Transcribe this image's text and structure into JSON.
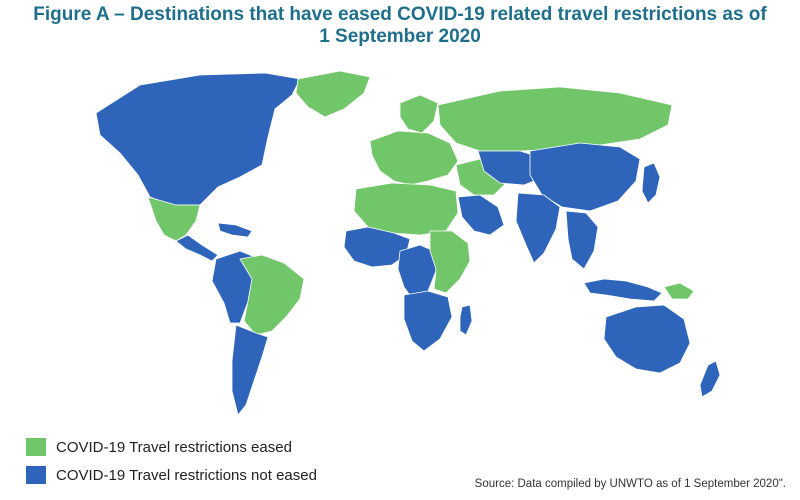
{
  "title_line1": "Figure A – Destinations that have eased COVID-19 related travel restrictions as of",
  "title_line2": "1 September 2020",
  "colors": {
    "title": "#1f6f8c",
    "eased": "#72c66a",
    "not_eased": "#2e65bb"
  },
  "legend": [
    {
      "label": "COVID-19 Travel restrictions eased",
      "color": "#72c66a"
    },
    {
      "label": "COVID-19 Travel restrictions not eased",
      "color": "#2e65bb"
    }
  ],
  "source": "Source: Data compiled by UNWTO as of 1 September 2020\".",
  "map_regions": [
    {
      "name": "north-america",
      "status": "not_eased"
    },
    {
      "name": "greenland",
      "status": "eased"
    },
    {
      "name": "mexico",
      "status": "eased"
    },
    {
      "name": "central-america",
      "status": "not_eased"
    },
    {
      "name": "caribbean",
      "status": "not_eased"
    },
    {
      "name": "brazil",
      "status": "eased"
    },
    {
      "name": "western-south-america",
      "status": "not_eased"
    },
    {
      "name": "southern-cone",
      "status": "not_eased"
    },
    {
      "name": "europe",
      "status": "eased"
    },
    {
      "name": "scandinavia",
      "status": "eased"
    },
    {
      "name": "russia",
      "status": "eased"
    },
    {
      "name": "north-africa",
      "status": "eased"
    },
    {
      "name": "west-africa",
      "status": "not_eased"
    },
    {
      "name": "central-africa",
      "status": "not_eased"
    },
    {
      "name": "east-africa",
      "status": "eased"
    },
    {
      "name": "southern-africa",
      "status": "not_eased"
    },
    {
      "name": "madagascar",
      "status": "not_eased"
    },
    {
      "name": "middle-east",
      "status": "eased"
    },
    {
      "name": "arabian-peninsula",
      "status": "not_eased"
    },
    {
      "name": "central-asia",
      "status": "not_eased"
    },
    {
      "name": "china-mongolia",
      "status": "not_eased"
    },
    {
      "name": "india",
      "status": "not_eased"
    },
    {
      "name": "southeast-asia",
      "status": "not_eased"
    },
    {
      "name": "japan",
      "status": "not_eased"
    },
    {
      "name": "indonesia",
      "status": "not_eased"
    },
    {
      "name": "papua-new-guinea",
      "status": "eased"
    },
    {
      "name": "australia",
      "status": "not_eased"
    },
    {
      "name": "new-zealand",
      "status": "not_eased"
    }
  ]
}
